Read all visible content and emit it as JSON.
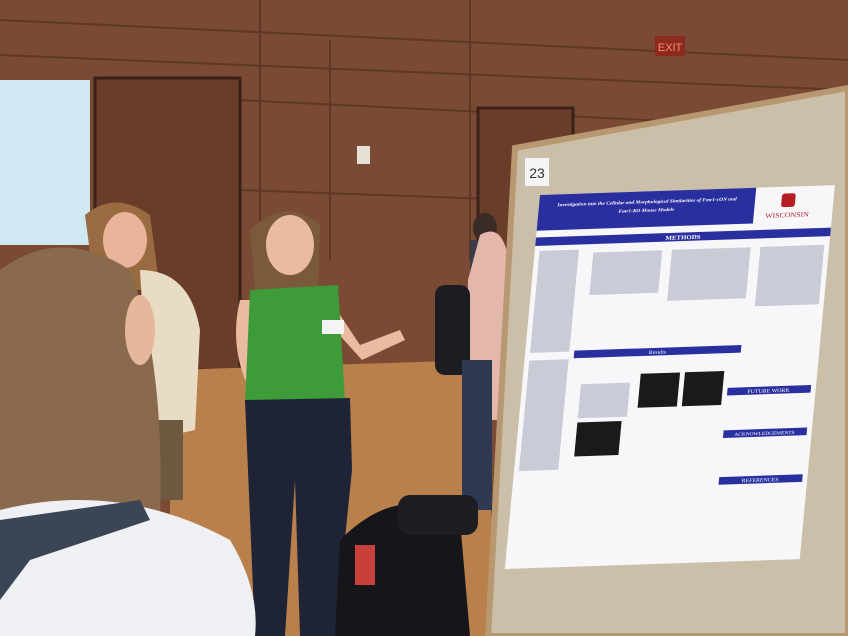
{
  "exit_sign": "EXIT",
  "poster": {
    "number": "23",
    "title_lines": [
      "Investigation into the Cellular and Morphological Similarities of Fmr1-cON and",
      "Fmr1-KO Mouse Models"
    ],
    "institution": "WISCONSIN",
    "sections": [
      "METHODS",
      "Results",
      "FUTURE WORK",
      "ACKNOWLEDGEMENTS",
      "REFERENCES"
    ]
  }
}
